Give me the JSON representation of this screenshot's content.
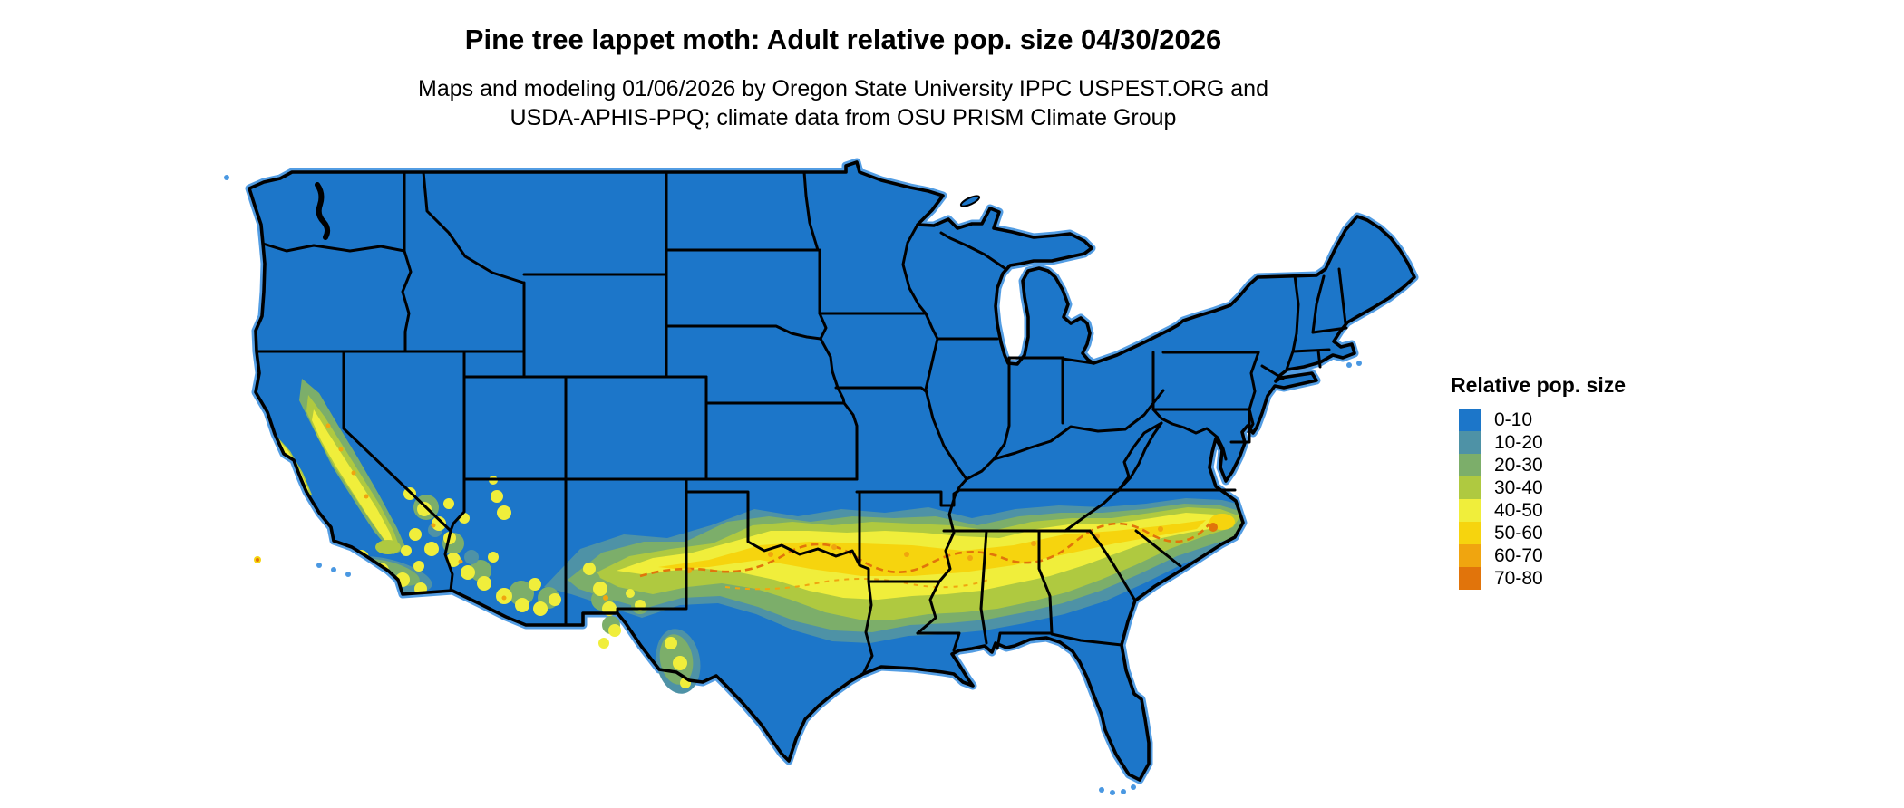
{
  "figure": {
    "title": "Pine tree lappet moth: Adult relative pop. size 04/30/2026",
    "subtitle_line1": "Maps and modeling 01/06/2026 by Oregon State University IPPC USPEST.ORG and",
    "subtitle_line2": "USDA-APHIS-PPQ; climate data from OSU PRISM Climate Group"
  },
  "legend": {
    "title": "Relative pop. size",
    "items": [
      {
        "label": "0-10",
        "color": "#1c76c9"
      },
      {
        "label": "10-20",
        "color": "#4e92a6"
      },
      {
        "label": "20-30",
        "color": "#7cae6a"
      },
      {
        "label": "30-40",
        "color": "#afc940"
      },
      {
        "label": "40-50",
        "color": "#f0ee3b"
      },
      {
        "label": "50-60",
        "color": "#f6d40e"
      },
      {
        "label": "60-70",
        "color": "#f0a50f"
      },
      {
        "label": "70-80",
        "color": "#e1740b"
      }
    ]
  },
  "map": {
    "region": "Contiguous United States",
    "base_fill_label": "0-10",
    "border_color": "#000000",
    "coast_halo_color": "#4a98e2"
  }
}
